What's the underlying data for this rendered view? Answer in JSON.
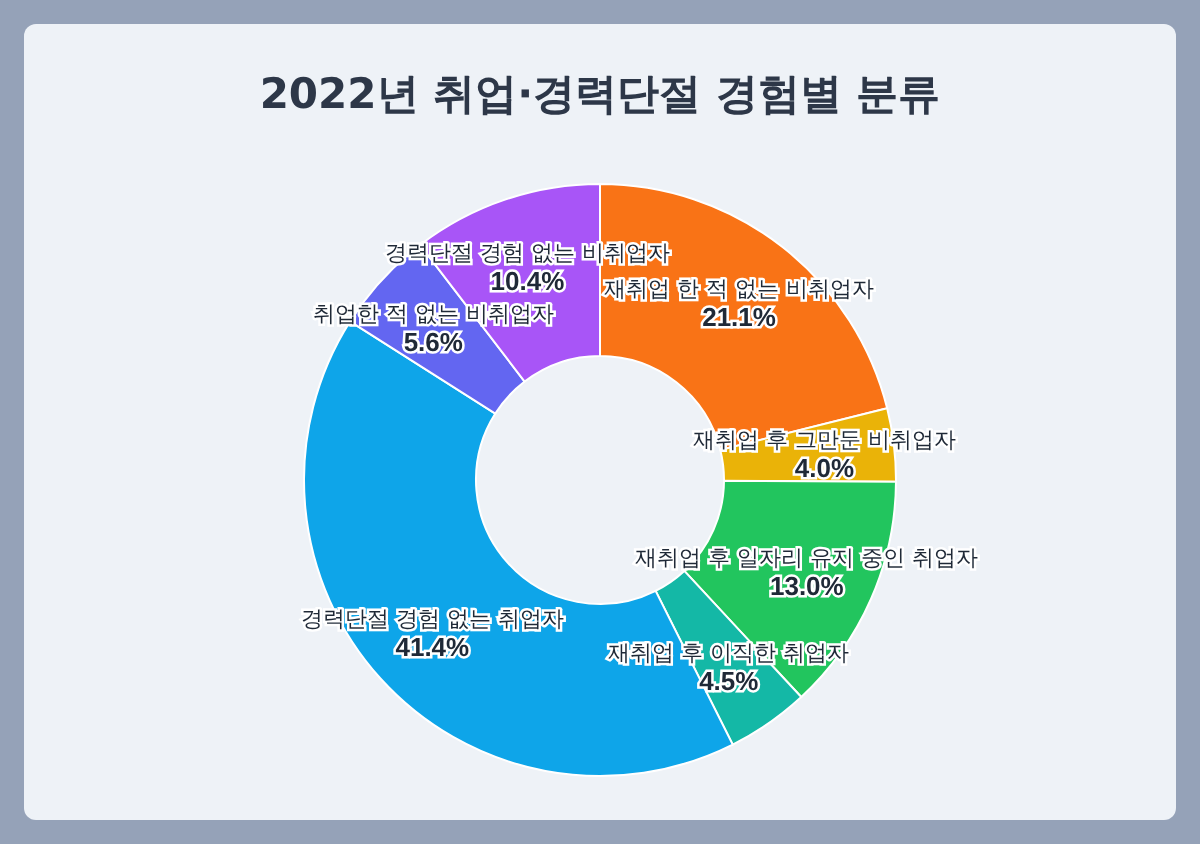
{
  "chart_data": {
    "type": "donut",
    "title": "2022년 취업·경력단절 경험별 분류",
    "categories": [
      "재취업 한 적 없는 비취업자",
      "재취업 후 그만둔 비취업자",
      "재취업 후 일자리 유지 중인 취업자",
      "재취업 후 이직한 취업자",
      "경력단절 경험 없는 취업자",
      "취업한 적 없는 비취업자",
      "경력단절 경험 없는 비취업자"
    ],
    "values": [
      21.1,
      4.0,
      13.0,
      4.5,
      41.4,
      5.6,
      10.4
    ],
    "colors": [
      "#f97316",
      "#eab308",
      "#22c55e",
      "#14b8a6",
      "#0ea5e9",
      "#6366f1",
      "#a855f7"
    ],
    "value_labels": [
      "21.1%",
      "4.0%",
      "13.0%",
      "4.5%",
      "41.4%",
      "5.6%",
      "10.4%"
    ],
    "legend": false
  }
}
